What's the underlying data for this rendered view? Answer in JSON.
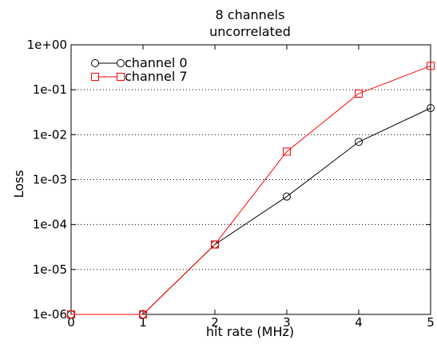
{
  "chart_data": {
    "type": "line",
    "title": [
      "8 channels",
      "uncorrelated"
    ],
    "xlabel": "hit rate (MHz)",
    "ylabel": "Loss",
    "x": [
      0,
      1,
      2,
      3,
      4,
      5
    ],
    "xlim": [
      0,
      5
    ],
    "ylim": [
      1e-06,
      1
    ],
    "yscale": "log",
    "x_ticks": [
      "0",
      "1",
      "2",
      "3",
      "4",
      "5"
    ],
    "y_ticks": [
      "1e-06",
      "1e-05",
      "1e-04",
      "1e-03",
      "1e-02",
      "1e-01",
      "1e+00"
    ],
    "grid": "horizontal dotted",
    "legend_position": "top-left",
    "series": [
      {
        "name": "channel 0",
        "color": "#000000",
        "marker": "circle",
        "values": [
          1e-06,
          1e-06,
          3.6e-05,
          0.00042,
          0.0069,
          0.039
        ]
      },
      {
        "name": "channel 7",
        "color": "#ff0000",
        "marker": "square",
        "values": [
          1e-06,
          1e-06,
          3.6e-05,
          0.0042,
          0.082,
          0.34
        ]
      }
    ]
  }
}
